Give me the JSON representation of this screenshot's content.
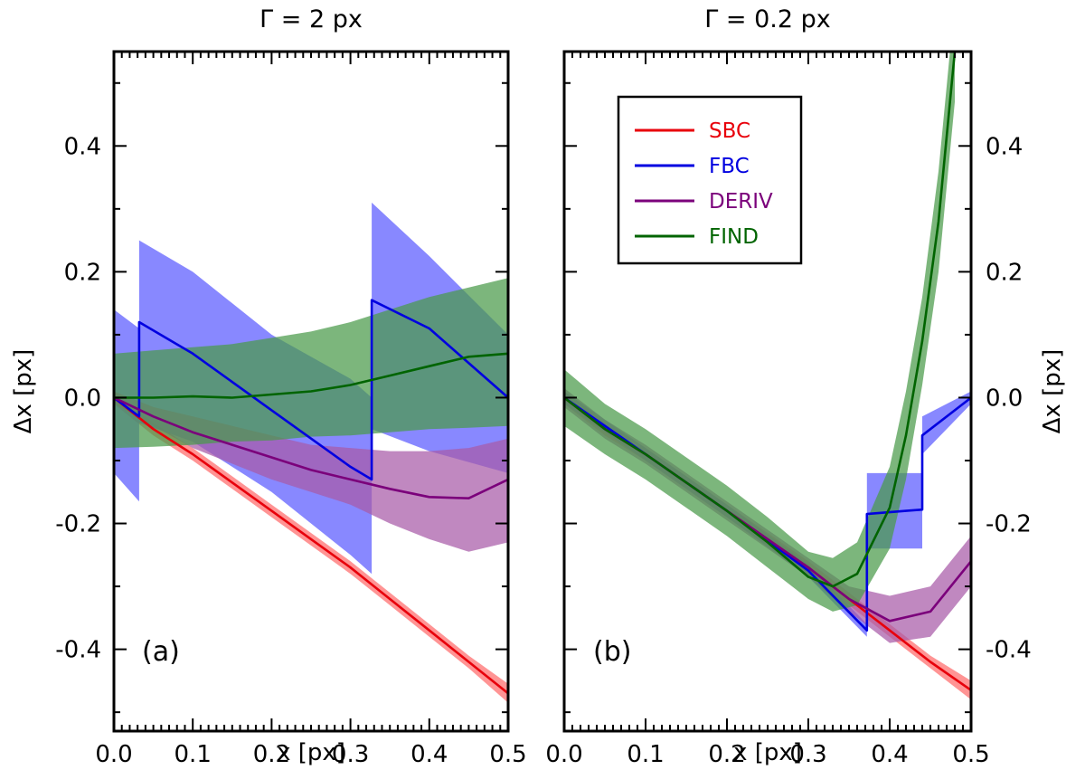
{
  "figure": {
    "ylabel": "Δx [px]",
    "xlabel": "x [px]"
  },
  "legend": {
    "entries": [
      {
        "name": "SBC",
        "color": "#e8000b"
      },
      {
        "name": "FBC",
        "color": "#0000e0"
      },
      {
        "name": "DERIV",
        "color": "#7b007b"
      },
      {
        "name": "FIND",
        "color": "#006400"
      }
    ]
  },
  "chart_data": [
    {
      "type": "line",
      "panel": "(a)",
      "title": "Γ = 2 px",
      "xlabel": "x [px]",
      "ylabel": "Δx [px]",
      "xlim": [
        0.0,
        0.5
      ],
      "ylim": [
        -0.53,
        0.55
      ],
      "xticks": [
        "0.0",
        "0.1",
        "0.2",
        "0.3",
        "0.4",
        "0.5"
      ],
      "yticks": [
        "0.4",
        "0.2",
        "0.0",
        "-0.2",
        "-0.4"
      ],
      "ytick_values": [
        0.4,
        0.2,
        0.0,
        -0.2,
        -0.4
      ],
      "series": [
        {
          "name": "SBC",
          "color": "#e8000b",
          "band_color": "#ff6b6b",
          "x": [
            0.0,
            0.05,
            0.1,
            0.15,
            0.2,
            0.25,
            0.3,
            0.35,
            0.4,
            0.45,
            0.5
          ],
          "y": [
            0.0,
            -0.05,
            -0.09,
            -0.135,
            -0.18,
            -0.225,
            -0.27,
            -0.32,
            -0.37,
            -0.42,
            -0.47
          ],
          "y_lower": [
            -0.01,
            -0.06,
            -0.1,
            -0.145,
            -0.19,
            -0.235,
            -0.28,
            -0.33,
            -0.38,
            -0.43,
            -0.485
          ],
          "y_upper": [
            0.01,
            -0.04,
            -0.08,
            -0.125,
            -0.17,
            -0.215,
            -0.26,
            -0.31,
            -0.36,
            -0.41,
            -0.455
          ]
        },
        {
          "name": "FBC",
          "color": "#0000e0",
          "band_color": "#5a5aff",
          "x": [
            0.0,
            0.032,
            0.032,
            0.1,
            0.2,
            0.3,
            0.327,
            0.327,
            0.4,
            0.5
          ],
          "y": [
            0.0,
            -0.03,
            0.12,
            0.07,
            -0.02,
            -0.11,
            -0.13,
            0.155,
            0.11,
            0.0
          ],
          "y_lower": [
            -0.12,
            -0.165,
            -0.04,
            -0.07,
            -0.15,
            -0.25,
            -0.28,
            -0.05,
            -0.085,
            -0.12
          ],
          "y_upper": [
            0.14,
            0.11,
            0.25,
            0.2,
            0.1,
            0.03,
            0.0,
            0.31,
            0.225,
            0.1
          ]
        },
        {
          "name": "DERIV",
          "color": "#7b007b",
          "band_color": "#a85aa8",
          "x": [
            0.0,
            0.05,
            0.1,
            0.15,
            0.2,
            0.25,
            0.3,
            0.35,
            0.4,
            0.45,
            0.5
          ],
          "y": [
            0.0,
            -0.03,
            -0.055,
            -0.075,
            -0.095,
            -0.115,
            -0.13,
            -0.145,
            -0.158,
            -0.16,
            -0.13
          ],
          "y_lower": [
            -0.01,
            -0.045,
            -0.08,
            -0.105,
            -0.13,
            -0.15,
            -0.17,
            -0.2,
            -0.225,
            -0.245,
            -0.23
          ],
          "y_upper": [
            0.01,
            -0.015,
            -0.03,
            -0.045,
            -0.06,
            -0.075,
            -0.08,
            -0.085,
            -0.085,
            -0.08,
            -0.065
          ]
        },
        {
          "name": "FIND",
          "color": "#006400",
          "band_color": "#4a9a4a",
          "x": [
            0.0,
            0.05,
            0.1,
            0.15,
            0.2,
            0.25,
            0.3,
            0.35,
            0.4,
            0.45,
            0.5
          ],
          "y": [
            0.0,
            0.0,
            0.002,
            0.0,
            0.005,
            0.01,
            0.02,
            0.035,
            0.05,
            0.065,
            0.07
          ],
          "y_lower": [
            -0.08,
            -0.078,
            -0.075,
            -0.07,
            -0.068,
            -0.062,
            -0.06,
            -0.055,
            -0.05,
            -0.048,
            -0.045
          ],
          "y_upper": [
            0.07,
            0.075,
            0.08,
            0.085,
            0.095,
            0.105,
            0.12,
            0.14,
            0.16,
            0.175,
            0.19
          ]
        }
      ]
    },
    {
      "type": "line",
      "panel": "(b)",
      "title": "Γ = 0.2 px",
      "xlabel": "x [px]",
      "ylabel": "Δx [px]",
      "xlim": [
        0.0,
        0.5
      ],
      "ylim": [
        -0.53,
        0.55
      ],
      "xticks": [
        "0.0",
        "0.1",
        "0.2",
        "0.3",
        "0.4",
        "0.5"
      ],
      "yticks": [
        "0.4",
        "0.2",
        "0.0",
        "-0.2",
        "-0.4"
      ],
      "ytick_values": [
        0.4,
        0.2,
        0.0,
        -0.2,
        -0.4
      ],
      "series": [
        {
          "name": "SBC",
          "color": "#e8000b",
          "band_color": "#ff6b6b",
          "x": [
            0.0,
            0.05,
            0.1,
            0.15,
            0.2,
            0.25,
            0.3,
            0.35,
            0.4,
            0.45,
            0.5
          ],
          "y": [
            0.0,
            -0.05,
            -0.09,
            -0.135,
            -0.18,
            -0.225,
            -0.27,
            -0.32,
            -0.37,
            -0.42,
            -0.465
          ],
          "y_lower": [
            -0.01,
            -0.06,
            -0.1,
            -0.145,
            -0.19,
            -0.235,
            -0.28,
            -0.33,
            -0.38,
            -0.43,
            -0.48
          ],
          "y_upper": [
            0.01,
            -0.04,
            -0.08,
            -0.125,
            -0.17,
            -0.215,
            -0.26,
            -0.31,
            -0.36,
            -0.41,
            -0.45
          ]
        },
        {
          "name": "FBC",
          "color": "#0000e0",
          "band_color": "#5a5aff",
          "x": [
            0.0,
            0.1,
            0.2,
            0.3,
            0.372,
            0.372,
            0.42,
            0.44,
            0.44,
            0.5
          ],
          "y": [
            0.0,
            -0.09,
            -0.18,
            -0.275,
            -0.37,
            -0.185,
            -0.18,
            -0.178,
            -0.06,
            0.0
          ],
          "y_lower": [
            -0.01,
            -0.1,
            -0.19,
            -0.285,
            -0.38,
            -0.24,
            -0.24,
            -0.24,
            -0.09,
            -0.01
          ],
          "y_upper": [
            0.01,
            -0.08,
            -0.17,
            -0.265,
            -0.36,
            -0.12,
            -0.12,
            -0.12,
            -0.03,
            0.01
          ]
        },
        {
          "name": "DERIV",
          "color": "#7b007b",
          "band_color": "#a85aa8",
          "x": [
            0.0,
            0.05,
            0.1,
            0.15,
            0.2,
            0.25,
            0.3,
            0.35,
            0.4,
            0.45,
            0.5
          ],
          "y": [
            0.0,
            -0.05,
            -0.09,
            -0.135,
            -0.18,
            -0.225,
            -0.27,
            -0.32,
            -0.355,
            -0.34,
            -0.26
          ],
          "y_lower": [
            -0.015,
            -0.065,
            -0.105,
            -0.15,
            -0.195,
            -0.24,
            -0.285,
            -0.34,
            -0.39,
            -0.38,
            -0.3
          ],
          "y_upper": [
            0.015,
            -0.035,
            -0.075,
            -0.12,
            -0.165,
            -0.21,
            -0.255,
            -0.3,
            -0.315,
            -0.3,
            -0.22
          ]
        },
        {
          "name": "FIND",
          "color": "#006400",
          "band_color": "#4a9a4a",
          "x": [
            0.0,
            0.05,
            0.1,
            0.15,
            0.2,
            0.25,
            0.3,
            0.33,
            0.36,
            0.4,
            0.42,
            0.44,
            0.46,
            0.48
          ],
          "y": [
            0.0,
            -0.05,
            -0.09,
            -0.135,
            -0.18,
            -0.23,
            -0.285,
            -0.3,
            -0.28,
            -0.175,
            -0.06,
            0.09,
            0.28,
            0.55
          ],
          "y_lower": [
            -0.045,
            -0.09,
            -0.13,
            -0.175,
            -0.22,
            -0.27,
            -0.32,
            -0.34,
            -0.33,
            -0.24,
            -0.13,
            0.02,
            0.2,
            0.47
          ],
          "y_upper": [
            0.045,
            -0.01,
            -0.05,
            -0.095,
            -0.14,
            -0.19,
            -0.245,
            -0.255,
            -0.23,
            -0.11,
            0.01,
            0.16,
            0.36,
            0.63
          ]
        }
      ]
    }
  ]
}
